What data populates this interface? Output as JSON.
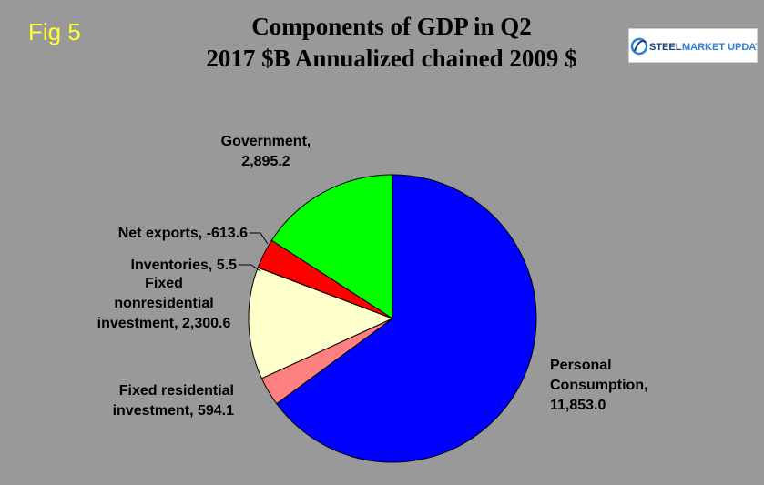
{
  "fig_label": "Fig 5",
  "title_line1": "Components of GDP in Q2",
  "title_line2": "2017 $B Annualized chained 2009 $",
  "logo": {
    "text1": "STEEL",
    "text2": "MARKET UPDATE",
    "color_dark": "#1c3f7a",
    "color_accent": "#2a7fd0"
  },
  "chart_data": {
    "type": "pie",
    "title": "Components of GDP in Q2 2017 $B Annualized chained 2009 $",
    "slices": [
      {
        "name": "Personal Consumption",
        "value": 11853.0,
        "label_lines": [
          "Personal",
          "Consumption,",
          "11,853.0"
        ],
        "color": "#0000ff"
      },
      {
        "name": "Fixed residential investment",
        "value": 594.1,
        "label_lines": [
          "Fixed residential",
          "investment, 594.1"
        ],
        "color": "#ff8080"
      },
      {
        "name": "Fixed nonresidential investment",
        "value": 2300.6,
        "label_lines": [
          "Fixed",
          "nonresidential",
          "investment, 2,300.6"
        ],
        "color": "#ffffcc"
      },
      {
        "name": "Inventories",
        "value": 5.5,
        "label_lines": [
          "Inventories, 5.5"
        ],
        "color": "#ffffcc"
      },
      {
        "name": "Net exports",
        "value": -613.6,
        "label_lines": [
          "Net exports, -613.6"
        ],
        "color": "#ff0000"
      },
      {
        "name": "Government",
        "value": 2895.2,
        "label_lines": [
          "Government,",
          "2,895.2"
        ],
        "color": "#00ff00"
      }
    ],
    "start": "12 o'clock",
    "direction": "clockwise",
    "legend": "none"
  }
}
